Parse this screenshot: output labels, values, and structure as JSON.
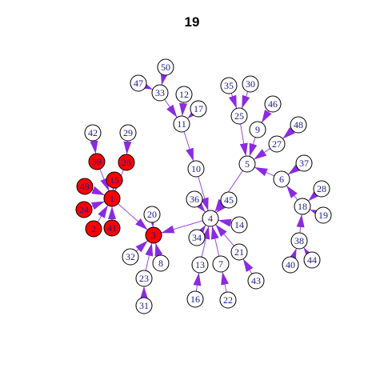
{
  "title": "19",
  "colors": {
    "edge": "#8a2be2",
    "arrow": "#8a2be2",
    "infected_fill": "#ff0000",
    "node_fill": "#ffffff",
    "node_stroke": "#000000",
    "label": "#1a1a8c"
  },
  "infected": [
    "1",
    "3",
    "2",
    "15",
    "24",
    "26",
    "39",
    "41",
    "49"
  ],
  "edges": [
    [
      "50",
      "33"
    ],
    [
      "47",
      "33"
    ],
    [
      "33",
      "11"
    ],
    [
      "12",
      "11"
    ],
    [
      "17",
      "11"
    ],
    [
      "11",
      "10"
    ],
    [
      "10",
      "4"
    ],
    [
      "35",
      "25"
    ],
    [
      "30",
      "25"
    ],
    [
      "25",
      "5"
    ],
    [
      "46",
      "9"
    ],
    [
      "9",
      "5"
    ],
    [
      "48",
      "27"
    ],
    [
      "27",
      "5"
    ],
    [
      "37",
      "6"
    ],
    [
      "6",
      "5"
    ],
    [
      "5",
      "4"
    ],
    [
      "28",
      "18"
    ],
    [
      "19",
      "18"
    ],
    [
      "18",
      "6"
    ],
    [
      "38",
      "18"
    ],
    [
      "40",
      "38"
    ],
    [
      "44",
      "38"
    ],
    [
      "36",
      "4"
    ],
    [
      "45",
      "4"
    ],
    [
      "14",
      "4"
    ],
    [
      "34",
      "4"
    ],
    [
      "13",
      "4"
    ],
    [
      "7",
      "4"
    ],
    [
      "21",
      "4"
    ],
    [
      "16",
      "13"
    ],
    [
      "22",
      "7"
    ],
    [
      "43",
      "21"
    ],
    [
      "4",
      "3"
    ],
    [
      "20",
      "3"
    ],
    [
      "32",
      "3"
    ],
    [
      "8",
      "3"
    ],
    [
      "23",
      "3"
    ],
    [
      "31",
      "23"
    ],
    [
      "1",
      "3"
    ],
    [
      "42",
      "39"
    ],
    [
      "29",
      "26"
    ],
    [
      "39",
      "1"
    ],
    [
      "26",
      "1"
    ],
    [
      "15",
      "1"
    ],
    [
      "49",
      "1"
    ],
    [
      "24",
      "1"
    ],
    [
      "2",
      "1"
    ],
    [
      "41",
      "1"
    ]
  ]
}
